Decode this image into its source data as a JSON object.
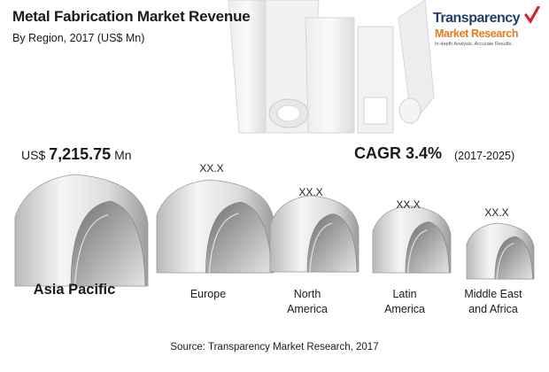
{
  "header": {
    "title": "Metal Fabrication Market Revenue",
    "subtitle": "By Region, 2017 (US$ Mn)"
  },
  "logo": {
    "name": "Transparency",
    "sub": "Market Research",
    "tagline": "In-depth Analysis. Accurate Results."
  },
  "highlight": {
    "prefix": "US$",
    "value": "7,215.75",
    "unit": "Mn"
  },
  "cagr": {
    "label": "CAGR 3.4%",
    "period": "(2017-2025)"
  },
  "source": "Source: Transparency Market Research, 2017",
  "colors": {
    "text": "#1b1b1b",
    "metal_light": "#f2f2f2",
    "metal_dark": "#8c8c8c",
    "logo_blue": "#1f3f6e",
    "logo_orange": "#e27d20",
    "logo_check": "#d6242a"
  },
  "chart_data": {
    "type": "bar",
    "title": "Metal Fabrication Market Revenue",
    "subtitle": "By Region, 2017 (US$ Mn)",
    "categories": [
      [
        "Asia Pacific"
      ],
      [
        "Europe"
      ],
      [
        "North",
        "America"
      ],
      [
        "Latin",
        "America"
      ],
      [
        "Middle East",
        "and Africa"
      ]
    ],
    "value_labels": [
      "US$ 7,215.75 Mn",
      "XX.X",
      "XX.X",
      "XX.X",
      "XX.X"
    ],
    "values": [
      7215.75,
      null,
      null,
      null,
      null
    ],
    "rank": [
      1,
      2,
      3,
      4,
      5
    ]
  }
}
